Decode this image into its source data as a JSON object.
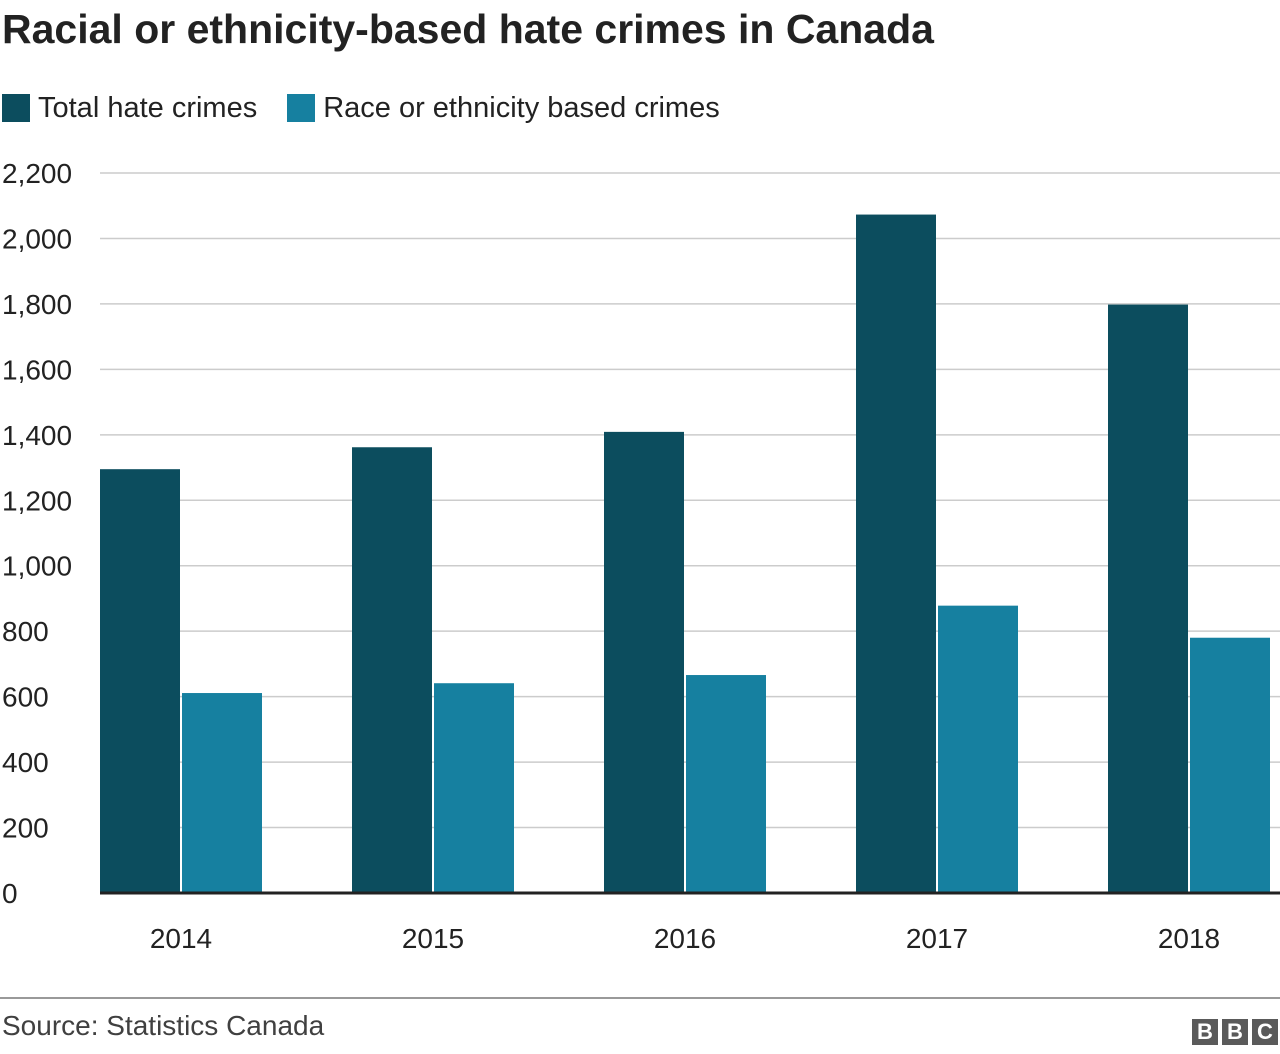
{
  "chart_data": {
    "type": "bar",
    "title": "Racial or ethnicity-based hate crimes in Canada",
    "categories": [
      "2014",
      "2015",
      "2016",
      "2017",
      "2018"
    ],
    "series": [
      {
        "name": "Total hate crimes",
        "color": "#0c4d5e",
        "values": [
          1295,
          1362,
          1409,
          2073,
          1798
        ]
      },
      {
        "name": "Race or ethnicity based crimes",
        "color": "#1680a0",
        "values": [
          611,
          641,
          666,
          878,
          780
        ]
      }
    ],
    "ylim": [
      0,
      2200
    ],
    "yticks": [
      "0",
      "200",
      "400",
      "600",
      "800",
      "1,000",
      "1,200",
      "1,400",
      "1,600",
      "1,800",
      "2,000",
      "2,200"
    ],
    "ytick_values": [
      0,
      200,
      400,
      600,
      800,
      1000,
      1200,
      1400,
      1600,
      1800,
      2000,
      2200
    ],
    "grid": true,
    "legend_position": "top-left",
    "xlabel": "",
    "ylabel": ""
  },
  "footer": {
    "source": "Source: Statistics Canada",
    "logo_text": [
      "B",
      "B",
      "C"
    ]
  }
}
